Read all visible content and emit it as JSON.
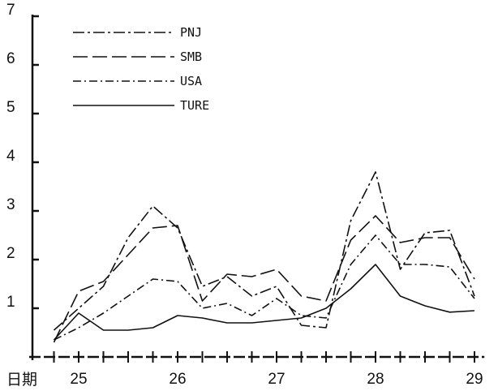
{
  "chart_data": {
    "type": "line",
    "title": "",
    "xlabel": "日期",
    "ylabel": "",
    "x": [
      24.75,
      25.0,
      25.25,
      25.5,
      25.75,
      26.0,
      26.25,
      26.5,
      26.75,
      27.0,
      27.25,
      27.5,
      27.75,
      28.0,
      28.25,
      28.5,
      28.75,
      29.0
    ],
    "xticks": [
      25,
      26,
      27,
      28,
      29
    ],
    "xlim": [
      24.5,
      29.1
    ],
    "yticks": [
      1,
      2,
      3,
      4,
      5,
      6,
      7
    ],
    "ylim": [
      0,
      7
    ],
    "grid": false,
    "legend_position": "top-left",
    "series": [
      {
        "name": "PNJ",
        "dash": "dashdot",
        "values": [
          0.55,
          1.0,
          1.45,
          2.45,
          3.1,
          2.65,
          1.45,
          1.65,
          1.25,
          1.45,
          0.65,
          0.6,
          2.8,
          3.8,
          1.8,
          2.55,
          2.6,
          1.25
        ]
      },
      {
        "name": "SMB",
        "dash": "longdash",
        "values": [
          0.3,
          1.35,
          1.55,
          2.1,
          2.65,
          2.7,
          1.15,
          1.7,
          1.65,
          1.8,
          1.25,
          1.15,
          2.4,
          2.9,
          2.35,
          2.45,
          2.45,
          1.6
        ]
      },
      {
        "name": "USA",
        "dash": "dashdot2",
        "values": [
          0.35,
          0.6,
          0.9,
          1.25,
          1.6,
          1.55,
          1.0,
          1.1,
          0.85,
          1.2,
          0.85,
          0.8,
          1.9,
          2.5,
          1.9,
          1.9,
          1.85,
          1.2
        ]
      },
      {
        "name": "TURE",
        "dash": "solid",
        "values": [
          0.35,
          0.9,
          0.55,
          0.55,
          0.6,
          0.85,
          0.8,
          0.7,
          0.7,
          0.75,
          0.8,
          1.0,
          1.4,
          1.9,
          1.25,
          1.05,
          0.92,
          0.95
        ]
      }
    ],
    "color": "#111111"
  }
}
